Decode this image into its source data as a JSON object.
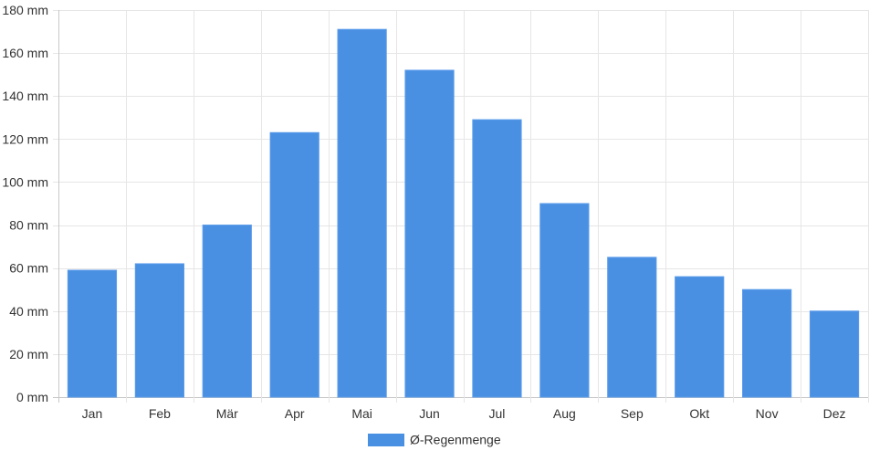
{
  "chart_data": {
    "type": "bar",
    "categories": [
      "Jan",
      "Feb",
      "Mär",
      "Apr",
      "Mai",
      "Jun",
      "Jul",
      "Aug",
      "Sep",
      "Okt",
      "Nov",
      "Dez"
    ],
    "series": [
      {
        "name": "Ø-Regenmenge",
        "values": [
          59,
          62,
          80,
          123,
          171,
          152,
          129,
          90,
          65,
          56,
          50,
          40
        ],
        "color": "#4a90e2"
      }
    ],
    "y_unit": "mm",
    "ylim": [
      0,
      180
    ],
    "y_ticks": [
      0,
      20,
      40,
      60,
      80,
      100,
      120,
      140,
      160,
      180
    ],
    "y_tick_labels": [
      "0 mm",
      "20 mm",
      "40 mm",
      "60 mm",
      "80 mm",
      "100 mm",
      "120 mm",
      "140 mm",
      "160 mm",
      "180 mm"
    ],
    "grid": true,
    "legend_position": "bottom-center",
    "title": "",
    "xlabel": "",
    "ylabel": ""
  }
}
